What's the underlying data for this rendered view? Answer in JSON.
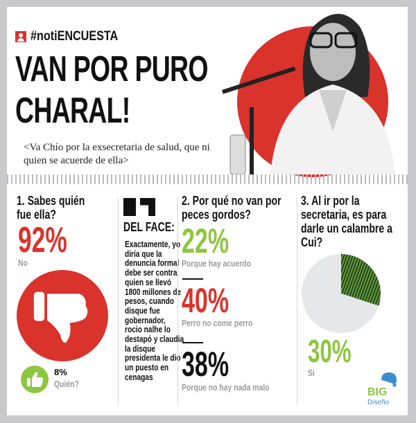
{
  "header": {
    "hashtag": "#notiENCUESTA",
    "title_line1": "VAN POR PURO",
    "title_line2": "CHARAL!",
    "subtitle": "<Va Chío por la exsecretaria de salud, que ni quien se acuerde de ella>"
  },
  "section1": {
    "question": "1. Sabes quién fue ella?",
    "main_pct": "92%",
    "main_label": "No",
    "secondary_pct": "8%",
    "secondary_label": "Quién?",
    "icons": [
      "thumbs-down-icon",
      "thumbs-up-icon"
    ]
  },
  "face": {
    "heading": "DEL FACE:",
    "text": "Exactamente, yo diría que la denuncia formal debe ser contra quien se llevó 1800 millones de pesos, cuando disque fue gobernador, rocio nalhe lo destapó y claudia la disque presidenta le dio un puesto en cenagas"
  },
  "section2": {
    "question": "2. Por qué no van por peces gordos?",
    "items": [
      {
        "pct": "22%",
        "label": "Porque hay acuerdo",
        "color": "#8dc63f"
      },
      {
        "pct": "40%",
        "label": "Perro no come perro",
        "color": "#d9332c"
      },
      {
        "pct": "38%",
        "label": "Porque no hay nada malo",
        "color": "#111111"
      }
    ]
  },
  "section3": {
    "question": "3. Al ir por la secretaria, es para darle un calambre a Cui?",
    "pct": "30%",
    "label": "Si",
    "chart_data": {
      "type": "pie",
      "values": [
        30,
        70
      ],
      "colors": [
        "#5a9a3a",
        "#e6e7e9"
      ]
    }
  },
  "brand": {
    "line1": "BIG",
    "line2": "Diseño"
  },
  "colors": {
    "red": "#d9332c",
    "green": "#8dc63f",
    "gray": "#9a9a9a"
  }
}
